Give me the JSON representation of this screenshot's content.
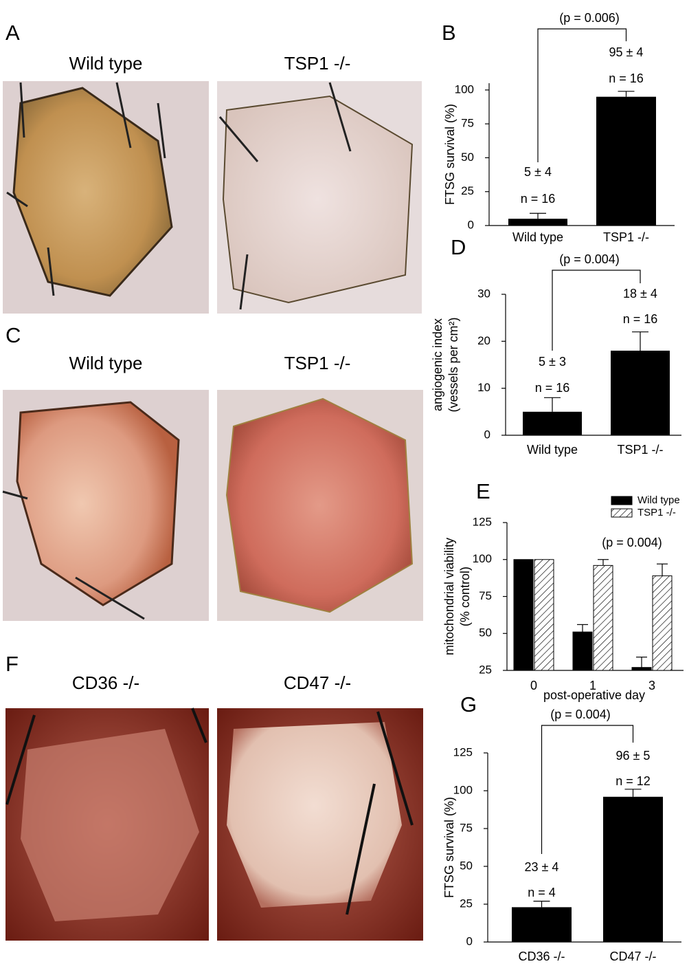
{
  "panels": [
    {
      "letter": "A",
      "labels": [
        "Wild type",
        "TSP1 -/-"
      ]
    },
    {
      "letter": "C",
      "labels": [
        "Wild type",
        "TSP1 -/-"
      ]
    },
    {
      "letter": "F",
      "labels": [
        "CD36 -/-",
        "CD47 -/-"
      ]
    }
  ],
  "chart_data": [
    {
      "type": "bar",
      "panel": "B",
      "ylabel": [
        "FTSG survival (%)"
      ],
      "categories": [
        "Wild type",
        "TSP1 -/-"
      ],
      "values": [
        5,
        95
      ],
      "errors": [
        4,
        4
      ],
      "value_labels": [
        "5 ± 4",
        "95 ± 4"
      ],
      "n_labels": [
        "n = 16",
        "n = 16"
      ],
      "annotation": "(p = 0.006)",
      "color": "#000000",
      "ylim": [
        0,
        105
      ],
      "yticks": [
        0,
        25,
        50,
        75,
        100
      ]
    },
    {
      "type": "bar",
      "panel": "D",
      "ylabel": [
        "angiogenic index",
        "(vessels per cm²)"
      ],
      "categories": [
        "Wild type",
        "TSP1 -/-"
      ],
      "values": [
        5,
        18
      ],
      "errors": [
        3,
        4
      ],
      "value_labels": [
        "5 ± 3",
        "18 ± 4"
      ],
      "n_labels": [
        "n = 16",
        "n = 16"
      ],
      "annotation": "(p = 0.004)",
      "color": "#000000",
      "ylim": [
        0,
        30
      ],
      "yticks": [
        0,
        10,
        20,
        30
      ]
    },
    {
      "type": "grouped_bar",
      "panel": "E",
      "ylabel": [
        "mitochondrial viability",
        "(% control)"
      ],
      "xlabel": "post-operative day",
      "categories": [
        "0",
        "1",
        "3"
      ],
      "series": [
        {
          "name": "Wild type",
          "color": "#000000",
          "values": [
            100,
            51,
            27
          ],
          "errors": [
            null,
            5,
            7
          ]
        },
        {
          "name": "TSP1 -/-",
          "color": "hatch",
          "values": [
            100,
            96,
            89
          ],
          "errors": [
            null,
            4,
            8
          ]
        }
      ],
      "annotation": "(p = 0.004)",
      "legend": "upper right",
      "ylim": [
        25,
        125
      ],
      "yticks": [
        25,
        50,
        75,
        100,
        125
      ]
    },
    {
      "type": "bar",
      "panel": "G",
      "ylabel": [
        "FTSG survival (%)"
      ],
      "categories": [
        "CD36 -/-",
        "CD47 -/-"
      ],
      "values": [
        23,
        96
      ],
      "errors": [
        4,
        5
      ],
      "value_labels": [
        "23 ± 4",
        "96 ± 5"
      ],
      "n_labels": [
        "n = 4",
        "n = 12"
      ],
      "annotation": "(p = 0.004)",
      "color": "#000000",
      "ylim": [
        0,
        125
      ],
      "yticks": [
        0,
        25,
        50,
        75,
        100,
        125
      ]
    }
  ]
}
